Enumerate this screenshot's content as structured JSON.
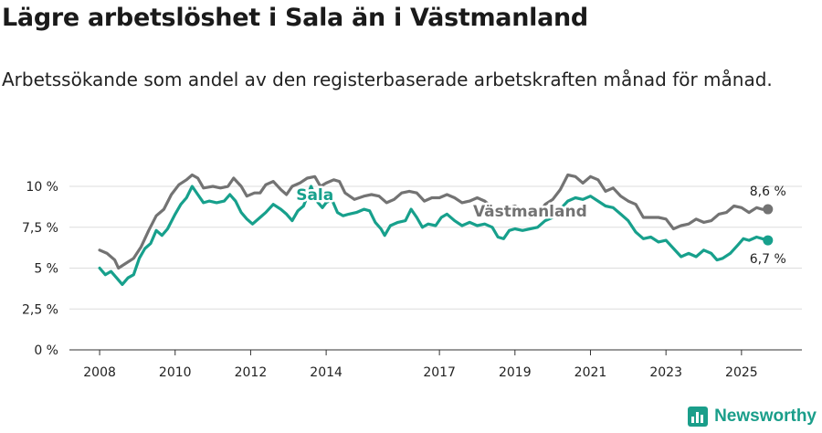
{
  "title": "Lägre arbetslöshet i Sala än i Västmanland",
  "subtitle": "Arbetssökande som andel av den registerbaserade arbetskraften månad för månad.",
  "brand": "Newsworthy",
  "colors": {
    "sala": "#17a08c",
    "vastmanland": "#737373",
    "grid": "#dddddd",
    "axis": "#333333"
  },
  "chart_data": {
    "type": "line",
    "title": "Lägre arbetslöshet i Sala än i Västmanland",
    "xlabel": "",
    "ylabel": "",
    "xlim": [
      2007.2,
      2026.6
    ],
    "ylim": [
      0,
      10
    ],
    "y_ticks": [
      {
        "value": 0,
        "label": "0 %"
      },
      {
        "value": 2.5,
        "label": "2,5 %"
      },
      {
        "value": 5,
        "label": "5 %"
      },
      {
        "value": 7.5,
        "label": "7,5 %"
      },
      {
        "value": 10,
        "label": "10 %"
      }
    ],
    "x_ticks": [
      {
        "value": 2008,
        "label": "2008"
      },
      {
        "value": 2010,
        "label": "2010"
      },
      {
        "value": 2012,
        "label": "2012"
      },
      {
        "value": 2014,
        "label": "2014"
      },
      {
        "value": 2017,
        "label": "2017"
      },
      {
        "value": 2019,
        "label": "2019"
      },
      {
        "value": 2021,
        "label": "2021"
      },
      {
        "value": 2023,
        "label": "2023"
      },
      {
        "value": 2025,
        "label": "2025"
      }
    ],
    "series": [
      {
        "name": "Västmanland",
        "label_x": 2019.4,
        "label_y": 8.5,
        "end_label": "8,6 %",
        "points": [
          [
            2008.0,
            6.1
          ],
          [
            2008.2,
            5.9
          ],
          [
            2008.4,
            5.5
          ],
          [
            2008.5,
            5.0
          ],
          [
            2008.7,
            5.3
          ],
          [
            2008.9,
            5.6
          ],
          [
            2009.1,
            6.3
          ],
          [
            2009.3,
            7.3
          ],
          [
            2009.5,
            8.2
          ],
          [
            2009.7,
            8.6
          ],
          [
            2009.9,
            9.5
          ],
          [
            2010.1,
            10.1
          ],
          [
            2010.3,
            10.4
          ],
          [
            2010.45,
            10.7
          ],
          [
            2010.6,
            10.5
          ],
          [
            2010.75,
            9.9
          ],
          [
            2011.0,
            10.0
          ],
          [
            2011.2,
            9.9
          ],
          [
            2011.4,
            10.0
          ],
          [
            2011.55,
            10.5
          ],
          [
            2011.75,
            10.0
          ],
          [
            2011.9,
            9.4
          ],
          [
            2012.1,
            9.6
          ],
          [
            2012.25,
            9.6
          ],
          [
            2012.4,
            10.1
          ],
          [
            2012.6,
            10.3
          ],
          [
            2012.8,
            9.8
          ],
          [
            2012.95,
            9.5
          ],
          [
            2013.1,
            10.0
          ],
          [
            2013.3,
            10.2
          ],
          [
            2013.5,
            10.5
          ],
          [
            2013.7,
            10.6
          ],
          [
            2013.85,
            10.0
          ],
          [
            2014.0,
            10.2
          ],
          [
            2014.2,
            10.4
          ],
          [
            2014.35,
            10.3
          ],
          [
            2014.5,
            9.6
          ],
          [
            2014.75,
            9.2
          ],
          [
            2015.0,
            9.4
          ],
          [
            2015.2,
            9.5
          ],
          [
            2015.4,
            9.4
          ],
          [
            2015.6,
            9.0
          ],
          [
            2015.8,
            9.2
          ],
          [
            2016.0,
            9.6
          ],
          [
            2016.2,
            9.7
          ],
          [
            2016.4,
            9.6
          ],
          [
            2016.6,
            9.1
          ],
          [
            2016.8,
            9.3
          ],
          [
            2017.0,
            9.3
          ],
          [
            2017.2,
            9.5
          ],
          [
            2017.4,
            9.3
          ],
          [
            2017.6,
            9.0
          ],
          [
            2017.8,
            9.1
          ],
          [
            2018.0,
            9.3
          ],
          [
            2018.2,
            9.1
          ],
          [
            2018.4,
            8.7
          ],
          [
            2018.55,
            8.1
          ],
          [
            2018.75,
            8.6
          ],
          [
            2019.0,
            8.8
          ],
          [
            2019.2,
            8.5
          ],
          [
            2019.4,
            8.1
          ],
          [
            2019.6,
            8.2
          ],
          [
            2019.8,
            8.9
          ],
          [
            2020.0,
            9.2
          ],
          [
            2020.2,
            9.8
          ],
          [
            2020.4,
            10.7
          ],
          [
            2020.6,
            10.6
          ],
          [
            2020.8,
            10.2
          ],
          [
            2021.0,
            10.6
          ],
          [
            2021.2,
            10.4
          ],
          [
            2021.4,
            9.7
          ],
          [
            2021.6,
            9.9
          ],
          [
            2021.8,
            9.4
          ],
          [
            2022.0,
            9.1
          ],
          [
            2022.2,
            8.9
          ],
          [
            2022.4,
            8.1
          ],
          [
            2022.6,
            8.1
          ],
          [
            2022.8,
            8.1
          ],
          [
            2023.0,
            8.0
          ],
          [
            2023.2,
            7.4
          ],
          [
            2023.4,
            7.6
          ],
          [
            2023.6,
            7.7
          ],
          [
            2023.8,
            8.0
          ],
          [
            2024.0,
            7.8
          ],
          [
            2024.2,
            7.9
          ],
          [
            2024.4,
            8.3
          ],
          [
            2024.6,
            8.4
          ],
          [
            2024.8,
            8.8
          ],
          [
            2025.0,
            8.7
          ],
          [
            2025.2,
            8.4
          ],
          [
            2025.4,
            8.7
          ],
          [
            2025.55,
            8.6
          ],
          [
            2025.7,
            8.6
          ]
        ]
      },
      {
        "name": "Sala",
        "label_x": 2013.7,
        "label_y": 9.5,
        "end_label": "6,7 %",
        "points": [
          [
            2008.0,
            5.0
          ],
          [
            2008.15,
            4.6
          ],
          [
            2008.3,
            4.8
          ],
          [
            2008.45,
            4.4
          ],
          [
            2008.6,
            4.0
          ],
          [
            2008.75,
            4.4
          ],
          [
            2008.9,
            4.6
          ],
          [
            2009.05,
            5.6
          ],
          [
            2009.2,
            6.2
          ],
          [
            2009.35,
            6.5
          ],
          [
            2009.5,
            7.3
          ],
          [
            2009.65,
            7.0
          ],
          [
            2009.8,
            7.4
          ],
          [
            2010.0,
            8.3
          ],
          [
            2010.15,
            8.9
          ],
          [
            2010.3,
            9.3
          ],
          [
            2010.45,
            10.0
          ],
          [
            2010.6,
            9.5
          ],
          [
            2010.75,
            9.0
          ],
          [
            2010.9,
            9.1
          ],
          [
            2011.1,
            9.0
          ],
          [
            2011.3,
            9.1
          ],
          [
            2011.45,
            9.5
          ],
          [
            2011.6,
            9.1
          ],
          [
            2011.75,
            8.4
          ],
          [
            2011.9,
            8.0
          ],
          [
            2012.05,
            7.7
          ],
          [
            2012.25,
            8.1
          ],
          [
            2012.4,
            8.4
          ],
          [
            2012.6,
            8.9
          ],
          [
            2012.8,
            8.6
          ],
          [
            2012.95,
            8.3
          ],
          [
            2013.1,
            7.9
          ],
          [
            2013.25,
            8.5
          ],
          [
            2013.4,
            8.8
          ],
          [
            2013.6,
            10.0
          ],
          [
            2013.75,
            9.1
          ],
          [
            2013.9,
            8.7
          ],
          [
            2014.0,
            9.0
          ],
          [
            2014.15,
            9.2
          ],
          [
            2014.3,
            8.4
          ],
          [
            2014.45,
            8.2
          ],
          [
            2014.6,
            8.3
          ],
          [
            2014.8,
            8.4
          ],
          [
            2015.0,
            8.6
          ],
          [
            2015.15,
            8.5
          ],
          [
            2015.3,
            7.8
          ],
          [
            2015.45,
            7.4
          ],
          [
            2015.55,
            7.0
          ],
          [
            2015.7,
            7.6
          ],
          [
            2015.9,
            7.8
          ],
          [
            2016.1,
            7.9
          ],
          [
            2016.25,
            8.6
          ],
          [
            2016.4,
            8.1
          ],
          [
            2016.55,
            7.5
          ],
          [
            2016.7,
            7.7
          ],
          [
            2016.9,
            7.6
          ],
          [
            2017.05,
            8.1
          ],
          [
            2017.2,
            8.3
          ],
          [
            2017.4,
            7.9
          ],
          [
            2017.6,
            7.6
          ],
          [
            2017.8,
            7.8
          ],
          [
            2018.0,
            7.6
          ],
          [
            2018.2,
            7.7
          ],
          [
            2018.4,
            7.5
          ],
          [
            2018.55,
            6.9
          ],
          [
            2018.7,
            6.8
          ],
          [
            2018.85,
            7.3
          ],
          [
            2019.0,
            7.4
          ],
          [
            2019.2,
            7.3
          ],
          [
            2019.4,
            7.4
          ],
          [
            2019.6,
            7.5
          ],
          [
            2019.8,
            7.9
          ],
          [
            2020.0,
            8.1
          ],
          [
            2020.2,
            8.6
          ],
          [
            2020.4,
            9.1
          ],
          [
            2020.6,
            9.3
          ],
          [
            2020.8,
            9.2
          ],
          [
            2021.0,
            9.4
          ],
          [
            2021.2,
            9.1
          ],
          [
            2021.4,
            8.8
          ],
          [
            2021.6,
            8.7
          ],
          [
            2021.8,
            8.3
          ],
          [
            2022.0,
            7.9
          ],
          [
            2022.2,
            7.2
          ],
          [
            2022.4,
            6.8
          ],
          [
            2022.6,
            6.9
          ],
          [
            2022.8,
            6.6
          ],
          [
            2023.0,
            6.7
          ],
          [
            2023.2,
            6.2
          ],
          [
            2023.4,
            5.7
          ],
          [
            2023.6,
            5.9
          ],
          [
            2023.8,
            5.7
          ],
          [
            2024.0,
            6.1
          ],
          [
            2024.2,
            5.9
          ],
          [
            2024.35,
            5.5
          ],
          [
            2024.5,
            5.6
          ],
          [
            2024.7,
            5.9
          ],
          [
            2024.9,
            6.4
          ],
          [
            2025.05,
            6.8
          ],
          [
            2025.2,
            6.7
          ],
          [
            2025.4,
            6.9
          ],
          [
            2025.55,
            6.8
          ],
          [
            2025.7,
            6.7
          ]
        ]
      }
    ]
  }
}
